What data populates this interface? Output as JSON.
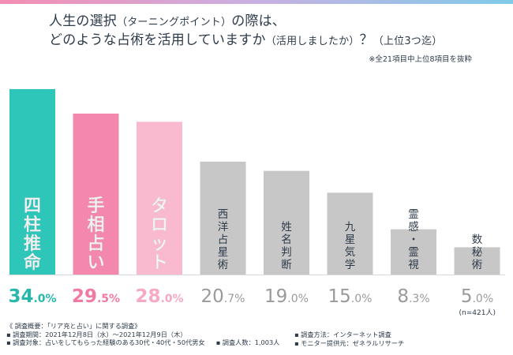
{
  "title": {
    "line1_main": "人生の選択",
    "line1_paren": "（ターニングポイント）",
    "line1_tail": "の際は、",
    "line2_main": "どのような占術を活用していますか",
    "line2_paren": "（活用しましたか）",
    "line2_q": "？",
    "line2_range": "（上位3つ迄）"
  },
  "note": "※全21項目中上位8項目を抜粋",
  "chart_data": {
    "type": "bar",
    "categories": [
      "四柱推命",
      "手相占い",
      "タロット",
      "西洋占星術",
      "姓名判断",
      "九星気学",
      "霊感・霊視",
      "数秘術"
    ],
    "values": [
      34.0,
      29.5,
      28.0,
      20.7,
      19.0,
      15.0,
      8.3,
      5.0
    ],
    "value_labels": [
      {
        "int": "34",
        "dec": ".0%"
      },
      {
        "int": "29",
        "dec": ".5%"
      },
      {
        "int": "28",
        "dec": ".0%"
      },
      {
        "int": "20",
        "dec": ".7%"
      },
      {
        "int": "19",
        "dec": ".0%"
      },
      {
        "int": "15",
        "dec": ".0%"
      },
      {
        "int": "8",
        "dec": ".3%"
      },
      {
        "int": "5",
        "dec": ".0%"
      }
    ],
    "bar_colors": [
      "#2ec6b8",
      "#f487ad",
      "#f9b9ce",
      "#c7c7c7",
      "#c7c7c7",
      "#c7c7c7",
      "#c7c7c7",
      "#c7c7c7"
    ],
    "label_colors": [
      "#26b8ab",
      "#f07aa3",
      "#f6a9c2",
      "#9a9a9a",
      "#9a9a9a",
      "#9a9a9a",
      "#9a9a9a",
      "#9a9a9a"
    ],
    "title": "人生の選択（ターニングポイント）の際は、どのような占術を活用していますか（活用しましたか）？（上位3つ迄）",
    "xlabel": "",
    "ylabel": "",
    "ylim": [
      0,
      35
    ]
  },
  "sample_size": "(n=421人)",
  "footer": {
    "overview": "《 調査概要：「リア充と占い」に関する調査》",
    "period": "▪ 調査期間：2021年12月8日（水）～2021年12月9日（木）",
    "target": "▪ 調査対象：占いをしてもらった経験のある30代・40代・50代男女",
    "count": "▪ 調査人数：1,003人",
    "method": "▪ 調査方法：インターネット調査",
    "provider": "▪ モニター提供元：ゼネラルリサーチ"
  },
  "colors": {
    "accent_teal": "#2ec6b8",
    "accent_pink": "#f487ad",
    "accent_light_pink": "#f9b9ce",
    "neutral_bar": "#c7c7c7",
    "text": "#2d3b4a"
  }
}
